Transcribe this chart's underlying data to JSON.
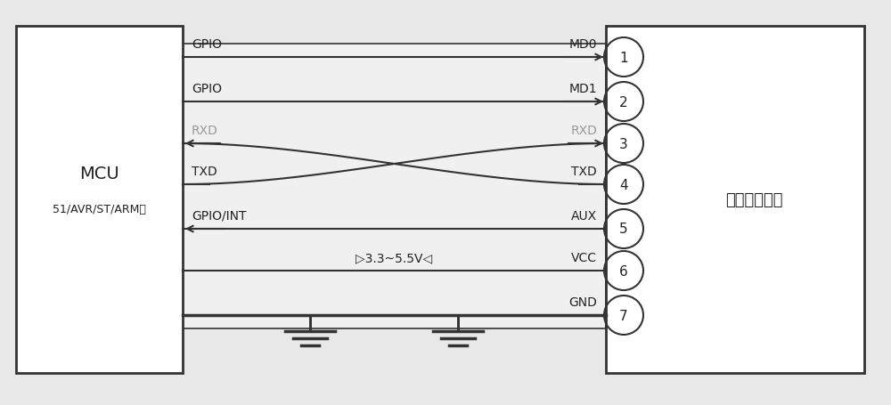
{
  "bg_color": "#e8e8e8",
  "line_color": "#333333",
  "gray_text_color": "#999999",
  "dark_text_color": "#222222",
  "fig_w": 10.0,
  "fig_h": 4.56,
  "mcu_label1": "MCU",
  "mcu_label2": "51/AVR/ST/ARM等",
  "module_label": "无线串口模块",
  "vcc_text": "▷3.3~5.5V◁",
  "rows": [
    {
      "label_l": "GPIO",
      "label_r": "MD0",
      "pin": "1",
      "arrow": "right",
      "gray": false,
      "type": "normal"
    },
    {
      "label_l": "GPIO",
      "label_r": "MD1",
      "pin": "2",
      "arrow": "right",
      "gray": false,
      "type": "normal"
    },
    {
      "label_l": "RXD",
      "label_r": "RXD",
      "pin": "3",
      "arrow": "both",
      "gray": true,
      "type": "cross_top"
    },
    {
      "label_l": "TXD",
      "label_r": "TXD",
      "pin": "4",
      "arrow": "none",
      "gray": false,
      "type": "cross_bot"
    },
    {
      "label_l": "GPIO/INT",
      "label_r": "AUX",
      "pin": "5",
      "arrow": "left",
      "gray": false,
      "type": "normal"
    },
    {
      "label_l": "",
      "label_r": "VCC",
      "pin": "6",
      "arrow": "none",
      "gray": false,
      "type": "vcc"
    },
    {
      "label_l": "",
      "label_r": "GND",
      "pin": "7",
      "arrow": "none",
      "gray": false,
      "type": "gnd"
    }
  ]
}
